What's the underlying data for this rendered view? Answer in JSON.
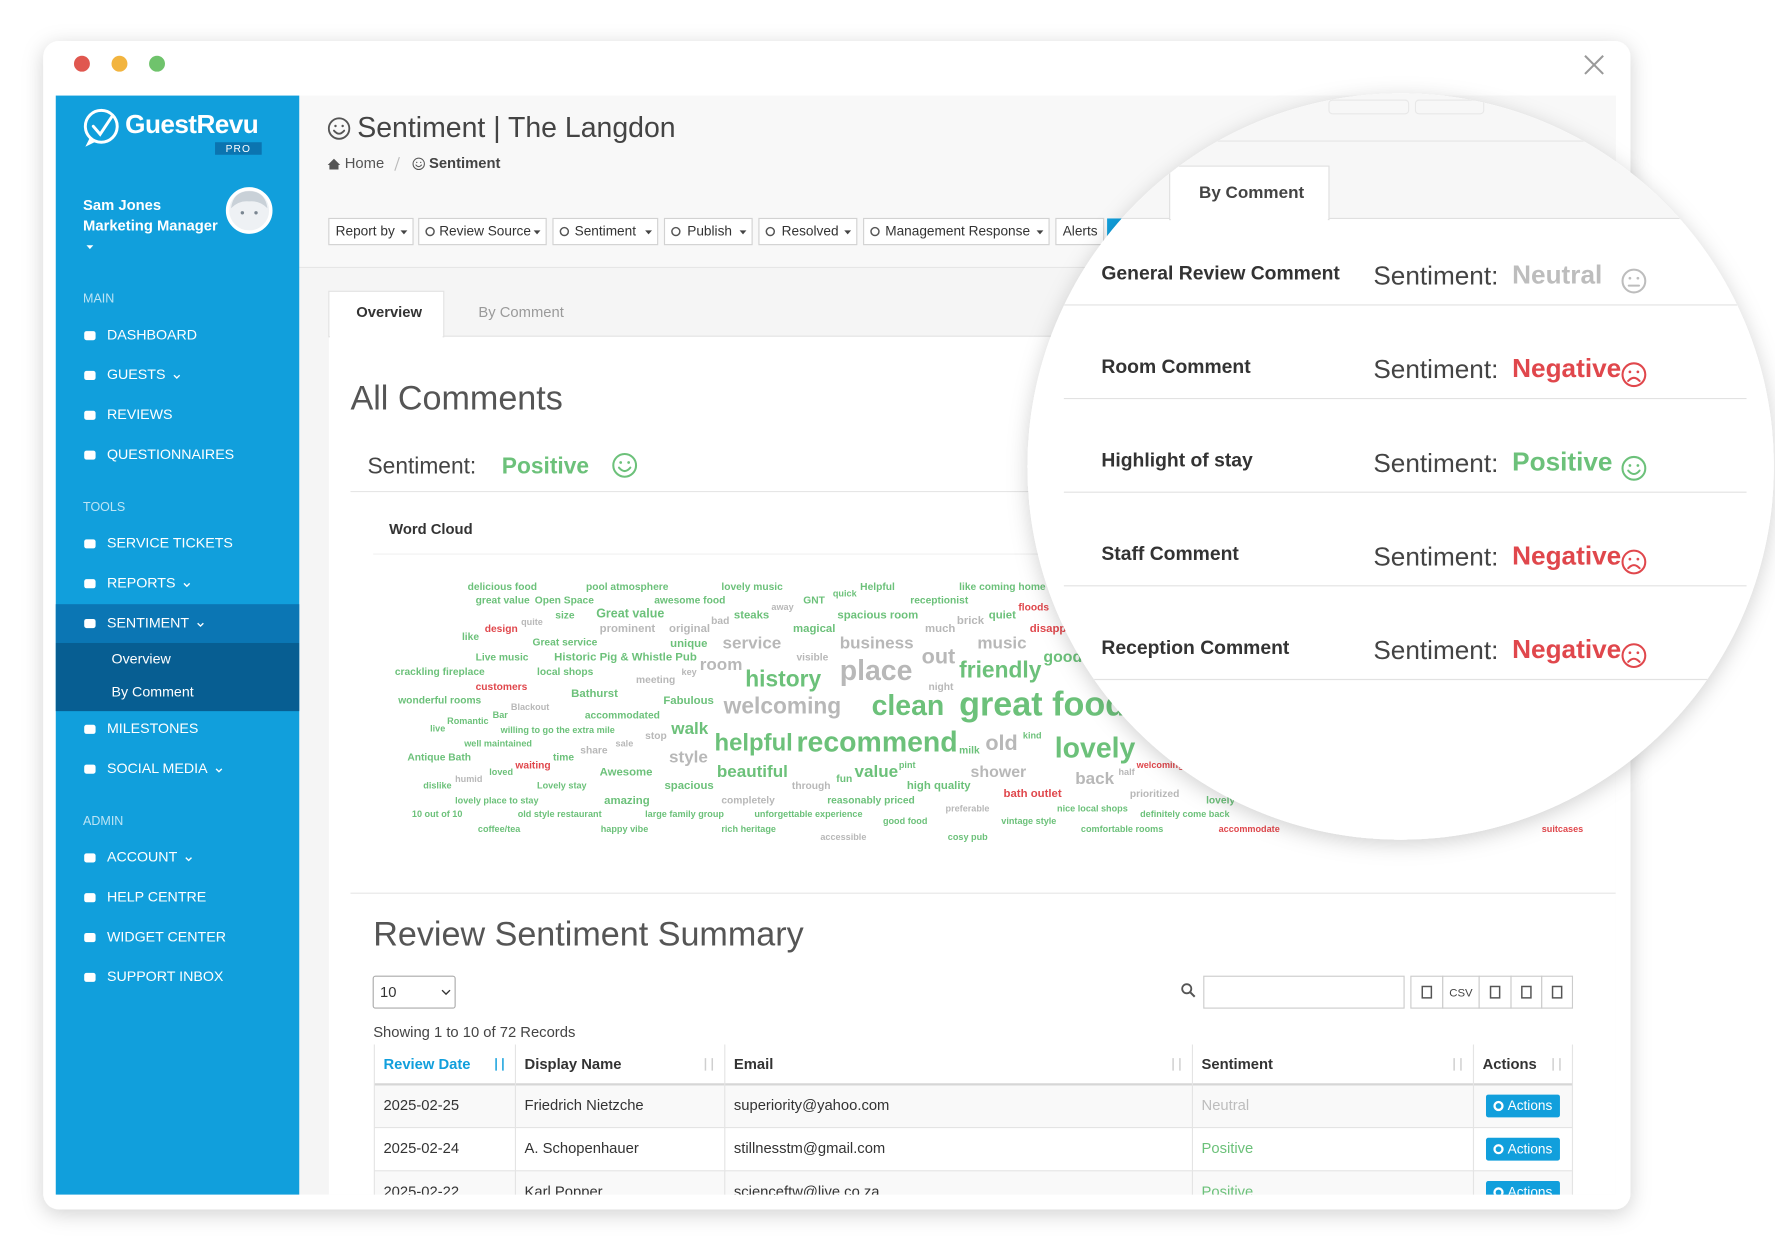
{
  "sidebar": {
    "brand": "GuestRevu",
    "badge": "PRO",
    "user": {
      "name": "Sam Jones",
      "role": "Marketing Manager"
    },
    "sections": [
      {
        "title": "MAIN",
        "items": [
          {
            "label": "DASHBOARD"
          },
          {
            "label": "GUESTS",
            "expandable": true
          },
          {
            "label": "REVIEWS"
          },
          {
            "label": "QUESTIONNAIRES"
          }
        ]
      },
      {
        "title": "TOOLS",
        "items": [
          {
            "label": "SERVICE TICKETS"
          },
          {
            "label": "REPORTS",
            "expandable": true
          },
          {
            "label": "SENTIMENT",
            "expandable": true,
            "active": true,
            "children": [
              "Overview",
              "By Comment"
            ]
          },
          {
            "label": "MILESTONES"
          },
          {
            "label": "SOCIAL MEDIA",
            "expandable": true
          }
        ]
      },
      {
        "title": "ADMIN",
        "items": [
          {
            "label": "ACCOUNT",
            "expandable": true
          },
          {
            "label": "HELP CENTRE"
          },
          {
            "label": "WIDGET CENTER"
          },
          {
            "label": "SUPPORT INBOX"
          }
        ]
      }
    ]
  },
  "header": {
    "title": "Sentiment | The Langdon",
    "breadcrumb": [
      "Home",
      "Sentiment"
    ],
    "filters": [
      {
        "label": "Report by",
        "dropdown": true
      },
      {
        "label": "Review Source",
        "dropdown": true
      },
      {
        "label": "Sentiment",
        "dropdown": true
      },
      {
        "label": "Publish",
        "dropdown": true
      },
      {
        "label": "Resolved",
        "dropdown": true
      },
      {
        "label": "Management Response",
        "dropdown": true
      },
      {
        "label": "Alerts",
        "dropdown": false
      }
    ]
  },
  "tabs": [
    "Overview",
    "By Comment"
  ],
  "sentiment_label": "Sentiment:",
  "sentiment_styles": {
    "Positive": {
      "color": "#6cc17a",
      "icon": "smile"
    },
    "Negative": {
      "color": "#e0474c",
      "icon": "frown"
    },
    "Neutral": {
      "color": "#bdbdbd",
      "icon": "meh"
    }
  },
  "overview": {
    "title": "All Comments",
    "sentiment": "Positive",
    "word_cloud": {
      "title": "Word Cloud",
      "words": [
        {
          "text": "delicious food",
          "color": "#6cc17a"
        },
        {
          "text": "pool atmosphere",
          "color": "#6cc17a"
        },
        {
          "text": "lovely music",
          "color": "#6cc17a"
        },
        {
          "text": "Helpful",
          "color": "#6cc17a"
        },
        {
          "text": "like coming home",
          "color": "#6cc17a"
        },
        {
          "text": "great value",
          "color": "#6cc17a"
        },
        {
          "text": "Open Space",
          "color": "#6cc17a"
        },
        {
          "text": "awesome food",
          "color": "#6cc17a"
        },
        {
          "text": "GNT",
          "color": "#6cc17a"
        },
        {
          "text": "quick",
          "color": "#6cc17a"
        },
        {
          "text": "away",
          "color": "#b8b8b8"
        },
        {
          "text": "receptionist",
          "color": "#6cc17a"
        },
        {
          "text": "quite",
          "color": "#b8b8b8"
        },
        {
          "text": "size",
          "color": "#6cc17a"
        },
        {
          "text": "Great value",
          "color": "#6cc17a"
        },
        {
          "text": "bad",
          "color": "#b8b8b8"
        },
        {
          "text": "steaks",
          "color": "#6cc17a"
        },
        {
          "text": "spacious room",
          "color": "#6cc17a"
        },
        {
          "text": "brick",
          "color": "#b8b8b8"
        },
        {
          "text": "quiet",
          "color": "#6cc17a"
        },
        {
          "text": "floods",
          "color": "#e0474c"
        },
        {
          "text": "design",
          "color": "#e0474c"
        },
        {
          "text": "prominent",
          "color": "#b8b8b8"
        },
        {
          "text": "original",
          "color": "#b8b8b8"
        },
        {
          "text": "magical",
          "color": "#6cc17a"
        },
        {
          "text": "much",
          "color": "#b8b8b8"
        },
        {
          "text": "disappointing",
          "color": "#e0474c"
        },
        {
          "text": "like",
          "color": "#6cc17a"
        },
        {
          "text": "Great service",
          "color": "#6cc17a"
        },
        {
          "text": "unique",
          "color": "#6cc17a"
        },
        {
          "text": "service",
          "color": "#b8b8b8"
        },
        {
          "text": "business",
          "color": "#b8b8b8"
        },
        {
          "text": "music",
          "color": "#b8b8b8"
        },
        {
          "text": "Live music",
          "color": "#6cc17a"
        },
        {
          "text": "Historic Pig & Whistle Pub",
          "color": "#6cc17a"
        },
        {
          "text": "visible",
          "color": "#b8b8b8"
        },
        {
          "text": "out",
          "color": "#b8b8b8"
        },
        {
          "text": "good",
          "color": "#6cc17a"
        },
        {
          "text": "room",
          "color": "#b8b8b8"
        },
        {
          "text": "crackling fireplace",
          "color": "#6cc17a"
        },
        {
          "text": "local shops",
          "color": "#6cc17a"
        },
        {
          "text": "key",
          "color": "#b8b8b8"
        },
        {
          "text": "place",
          "color": "#b8b8b8"
        },
        {
          "text": "friendly",
          "color": "#6cc17a"
        },
        {
          "text": "history",
          "color": "#6cc17a"
        },
        {
          "text": "meeting",
          "color": "#b8b8b8"
        },
        {
          "text": "customers",
          "color": "#e0474c"
        },
        {
          "text": "night",
          "color": "#b8b8b8"
        },
        {
          "text": "Bathurst",
          "color": "#6cc17a"
        },
        {
          "text": "wonderful rooms",
          "color": "#6cc17a"
        },
        {
          "text": "Fabulous",
          "color": "#6cc17a"
        },
        {
          "text": "welcoming",
          "color": "#b8b8b8"
        },
        {
          "text": "clean",
          "color": "#6cc17a"
        },
        {
          "text": "great food",
          "color": "#6cc17a"
        },
        {
          "text": "Blackout",
          "color": "#b8b8b8"
        },
        {
          "text": "Bar",
          "color": "#6cc17a"
        },
        {
          "text": "accommodated",
          "color": "#6cc17a"
        },
        {
          "text": "Romantic",
          "color": "#6cc17a"
        },
        {
          "text": "live",
          "color": "#6cc17a"
        },
        {
          "text": "willing to go the extra mile",
          "color": "#6cc17a"
        },
        {
          "text": "walk",
          "color": "#6cc17a"
        },
        {
          "text": "stop",
          "color": "#b8b8b8"
        },
        {
          "text": "helpful",
          "color": "#6cc17a"
        },
        {
          "text": "recommend",
          "color": "#6cc17a"
        },
        {
          "text": "milk",
          "color": "#6cc17a"
        },
        {
          "text": "old",
          "color": "#b8b8b8"
        },
        {
          "text": "kind",
          "color": "#6cc17a"
        },
        {
          "text": "lovely",
          "color": "#6cc17a"
        },
        {
          "text": "well maintained",
          "color": "#6cc17a"
        },
        {
          "text": "sale",
          "color": "#b8b8b8"
        },
        {
          "text": "share",
          "color": "#b8b8b8"
        },
        {
          "text": "time",
          "color": "#6cc17a"
        },
        {
          "text": "style",
          "color": "#b8b8b8"
        },
        {
          "text": "Antique Bath",
          "color": "#6cc17a"
        },
        {
          "text": "waiting",
          "color": "#e0474c"
        },
        {
          "text": "welcoming",
          "color": "#e0474c"
        },
        {
          "text": "Awesome",
          "color": "#6cc17a"
        },
        {
          "text": "beautiful",
          "color": "#6cc17a"
        },
        {
          "text": "value",
          "color": "#6cc17a"
        },
        {
          "text": "pint",
          "color": "#6cc17a"
        },
        {
          "text": "shower",
          "color": "#b8b8b8"
        },
        {
          "text": "back",
          "color": "#b8b8b8"
        },
        {
          "text": "half",
          "color": "#b8b8b8"
        },
        {
          "text": "loved",
          "color": "#6cc17a"
        },
        {
          "text": "humid",
          "color": "#b8b8b8"
        },
        {
          "text": "fun",
          "color": "#6cc17a"
        },
        {
          "text": "through",
          "color": "#b8b8b8"
        },
        {
          "text": "dislike",
          "color": "#6cc17a"
        },
        {
          "text": "Lovely stay",
          "color": "#6cc17a"
        },
        {
          "text": "spacious",
          "color": "#6cc17a"
        },
        {
          "text": "high quality",
          "color": "#6cc17a"
        },
        {
          "text": "bath outlet",
          "color": "#e0474c"
        },
        {
          "text": "prioritized",
          "color": "#b8b8b8"
        },
        {
          "text": "lovely place to stay",
          "color": "#6cc17a"
        },
        {
          "text": "amazing",
          "color": "#6cc17a"
        },
        {
          "text": "completely",
          "color": "#b8b8b8"
        },
        {
          "text": "reasonably priced",
          "color": "#6cc17a"
        },
        {
          "text": "lovely",
          "color": "#6cc17a"
        },
        {
          "text": "preferable",
          "color": "#b8b8b8"
        },
        {
          "text": "nice local shops",
          "color": "#6cc17a"
        },
        {
          "text": "definitely come back",
          "color": "#6cc17a"
        },
        {
          "text": "10 out of 10",
          "color": "#6cc17a"
        },
        {
          "text": "old style restaurant",
          "color": "#6cc17a"
        },
        {
          "text": "large family group",
          "color": "#6cc17a"
        },
        {
          "text": "unforgettable experience",
          "color": "#6cc17a"
        },
        {
          "text": "good food",
          "color": "#6cc17a"
        },
        {
          "text": "vintage style",
          "color": "#6cc17a"
        },
        {
          "text": "coffee/tea",
          "color": "#6cc17a"
        },
        {
          "text": "happy vibe",
          "color": "#6cc17a"
        },
        {
          "text": "rich heritage",
          "color": "#6cc17a"
        },
        {
          "text": "accessible",
          "color": "#b8b8b8"
        },
        {
          "text": "cosy pub",
          "color": "#6cc17a"
        },
        {
          "text": "comfortable rooms",
          "color": "#6cc17a"
        },
        {
          "text": "accommodate",
          "color": "#e0474c"
        },
        {
          "text": "suitcases",
          "color": "#e0474c"
        }
      ]
    }
  },
  "summary": {
    "title": "Review Sentiment Summary",
    "page_length": "10",
    "export_csv": "CSV",
    "info": "Showing 1 to 10 of 72 Records",
    "table": {
      "headers": [
        "Review Date",
        "Display Name",
        "Email",
        "Sentiment",
        "Actions"
      ],
      "rows": [
        [
          "2025-02-25",
          "Friedrich Nietzche",
          "superiority@yahoo.com",
          "Neutral",
          "Actions"
        ],
        [
          "2025-02-24",
          "A. Schopenhauer",
          "stillnesstm@gmail.com",
          "Positive",
          "Actions"
        ],
        [
          "2025-02-22",
          "Karl Popper",
          "scienceftw@live.co.za",
          "Positive",
          "Actions"
        ]
      ]
    }
  },
  "magnifier": {
    "rows": [
      {
        "label": "General Review Comment",
        "sentiment": "Neutral"
      },
      {
        "label": "Room Comment",
        "sentiment": "Negative"
      },
      {
        "label": "Highlight of stay",
        "sentiment": "Positive"
      },
      {
        "label": "Staff Comment",
        "sentiment": "Negative"
      },
      {
        "label": "Reception Comment",
        "sentiment": "Negative"
      }
    ]
  }
}
